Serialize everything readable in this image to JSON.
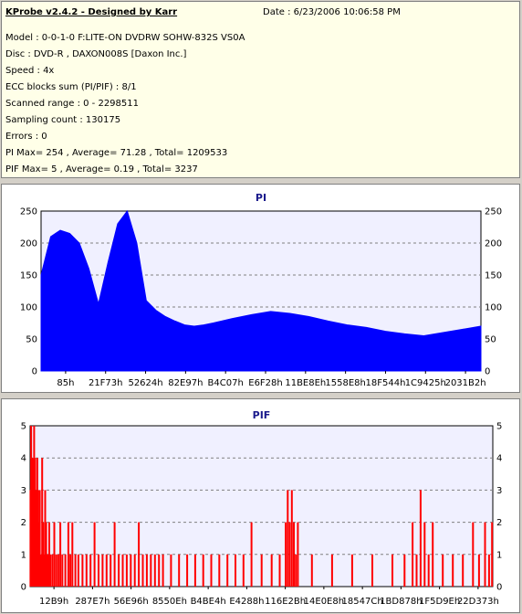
{
  "header": {
    "app_title": "KProbe v2.4.2 - Designed by Karr",
    "date": "Date : 6/23/2006 10:06:58 PM",
    "lines": [
      "Model : 0-0-1-0 F:LITE-ON DVDRW SOHW-832S  VS0A",
      "Disc : DVD-R , DAXON008S [Daxon Inc.]",
      "Speed : 4x",
      "ECC blocks sum (PI/PIF) : 8/1",
      "Scanned range : 0 - 2298511",
      "Sampling count : 130175",
      "Errors : 0",
      "PI Max= 254 , Average= 71.28 , Total= 1209533",
      "PIF Max= 5 , Average= 0.19 , Total= 3237"
    ]
  },
  "chart_data": [
    {
      "type": "area",
      "title": "PI",
      "color": "#0000ff",
      "ylim": [
        0,
        250
      ],
      "yticks": [
        0,
        50,
        100,
        150,
        200,
        250
      ],
      "grid": true,
      "xlim": [
        0,
        2298511
      ],
      "xtick_labels": [
        "85h",
        "21F73h",
        "52624h",
        "82E97h",
        "B4C07h",
        "E6F28h",
        "11BE8Eh",
        "1558E8h",
        "18F544h",
        "1C9425h",
        "2031B2h"
      ],
      "series": [
        {
          "x": [
            0,
            50000,
            100000,
            150000,
            200000,
            250000,
            300000,
            350000,
            400000,
            450000,
            500000,
            550000,
            600000,
            650000,
            700000,
            750000,
            800000,
            850000,
            900000,
            1000000,
            1100000,
            1200000,
            1300000,
            1400000,
            1500000,
            1600000,
            1700000,
            1800000,
            1900000,
            2000000,
            2100000,
            2200000,
            2298511
          ],
          "y": [
            150,
            210,
            220,
            215,
            200,
            160,
            105,
            170,
            230,
            250,
            200,
            110,
            95,
            85,
            78,
            72,
            70,
            72,
            75,
            82,
            88,
            93,
            90,
            85,
            78,
            72,
            68,
            62,
            58,
            55,
            60,
            65,
            70
          ]
        }
      ]
    },
    {
      "type": "bar",
      "title": "PIF",
      "color": "#ff0000",
      "ylim": [
        0,
        5
      ],
      "yticks": [
        0,
        1,
        2,
        3,
        4,
        5
      ],
      "grid": true,
      "xlim": [
        0,
        2298511
      ],
      "xtick_labels": [
        "12B9h",
        "287E7h",
        "56E96h",
        "8550Eh",
        "B4BE4h",
        "E4288h",
        "116E2Bh",
        "14E0E8h",
        "18547Ch",
        "1BD878h",
        "1F5D9Eh",
        "22D373h"
      ],
      "series": [
        {
          "x": [
            2000,
            5000,
            10000,
            12000,
            15000,
            20000,
            25000,
            28000,
            32000,
            36000,
            40000,
            45000,
            48000,
            55000,
            60000,
            65000,
            70000,
            75000,
            80000,
            85000,
            90000,
            95000,
            100000,
            110000,
            120000,
            130000,
            140000,
            150000,
            160000,
            175000,
            190000,
            200000,
            210000,
            225000,
            240000,
            260000,
            280000,
            300000,
            320000,
            340000,
            360000,
            380000,
            400000,
            420000,
            440000,
            460000,
            480000,
            500000,
            520000,
            540000,
            560000,
            580000,
            600000,
            620000,
            640000,
            660000,
            700000,
            740000,
            780000,
            820000,
            860000,
            900000,
            940000,
            980000,
            1020000,
            1060000,
            1100000,
            1150000,
            1200000,
            1240000,
            1270000,
            1280000,
            1290000,
            1300000,
            1310000,
            1320000,
            1330000,
            1400000,
            1500000,
            1600000,
            1700000,
            1800000,
            1860000,
            1900000,
            1920000,
            1940000,
            1960000,
            1980000,
            2000000,
            2050000,
            2100000,
            2150000,
            2200000,
            2230000,
            2260000,
            2280000,
            2295000
          ],
          "y": [
            3,
            5,
            2,
            4,
            3,
            5,
            4,
            3,
            2,
            4,
            3,
            2,
            3,
            1,
            4,
            2,
            1,
            3,
            2,
            1,
            1,
            2,
            1,
            1,
            2,
            1,
            1,
            2,
            1,
            1,
            2,
            1,
            2,
            1,
            1,
            1,
            1,
            1,
            2,
            1,
            1,
            1,
            1,
            2,
            1,
            1,
            1,
            1,
            1,
            2,
            1,
            1,
            1,
            1,
            1,
            1,
            1,
            1,
            1,
            1,
            1,
            1,
            1,
            1,
            1,
            1,
            2,
            1,
            1,
            1,
            2,
            3,
            2,
            3,
            2,
            1,
            2,
            1,
            1,
            1,
            1,
            1,
            1,
            2,
            1,
            3,
            2,
            1,
            2,
            1,
            1,
            1,
            2,
            1,
            2,
            1,
            2
          ]
        }
      ]
    }
  ]
}
